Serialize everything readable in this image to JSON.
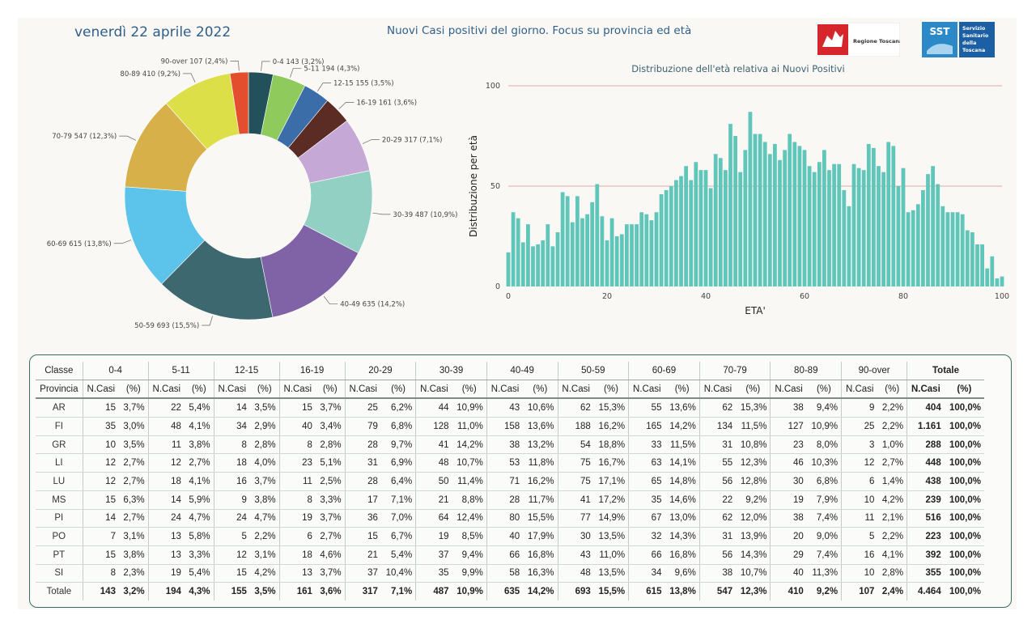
{
  "header": {
    "date": "venerdì 22 aprile 2022",
    "title": "Nuovi Casi positivi del giorno. Focus su provincia ed età"
  },
  "logos": {
    "regione": "Regione Toscana",
    "sst_mark": "SST",
    "sst_lines": [
      "Servizio",
      "Sanitario",
      "della",
      "Toscana"
    ]
  },
  "chart_data": [
    {
      "type": "pie",
      "slices": [
        {
          "label": "0-4 143 (3,2%)",
          "value": 143,
          "color": "#22515b"
        },
        {
          "label": "5-11 194 (4,3%)",
          "value": 194,
          "color": "#8fca5c"
        },
        {
          "label": "12-15 155 (3,5%)",
          "value": 155,
          "color": "#3b6ea8"
        },
        {
          "label": "16-19 161 (3,6%)",
          "value": 161,
          "color": "#5a2c24"
        },
        {
          "label": "20-29 317 (7,1%)",
          "value": 317,
          "color": "#c5a8d6"
        },
        {
          "label": "30-39 487 (10,9%)",
          "value": 487,
          "color": "#93d0c4"
        },
        {
          "label": "40-49 635 (14,2%)",
          "value": 635,
          "color": "#8063a7"
        },
        {
          "label": "50-59 693 (15,5%)",
          "value": 693,
          "color": "#3e6870"
        },
        {
          "label": "60-69 615 (13,8%)",
          "value": 615,
          "color": "#5cc3ea"
        },
        {
          "label": "70-79 547 (12,3%)",
          "value": 547,
          "color": "#d8b04a"
        },
        {
          "label": "80-89 410 (9,2%)",
          "value": 410,
          "color": "#dcdf47"
        },
        {
          "label": "90-over 107 (2,4%)",
          "value": 107,
          "color": "#e24e2e"
        }
      ]
    },
    {
      "type": "bar",
      "title": "Distribuzione dell'età relativa ai Nuovi Positivi",
      "xlabel": "ETA'",
      "ylabel": "Distribuzione per età",
      "xlim": [
        0,
        100
      ],
      "ylim": [
        0,
        100
      ],
      "xticks": [
        0,
        20,
        40,
        60,
        80,
        100
      ],
      "yticks": [
        0,
        50,
        100
      ],
      "color": "#5fc6b9",
      "x": [
        0,
        1,
        2,
        3,
        4,
        5,
        6,
        7,
        8,
        9,
        10,
        11,
        12,
        13,
        14,
        15,
        16,
        17,
        18,
        19,
        20,
        21,
        22,
        23,
        24,
        25,
        26,
        27,
        28,
        29,
        30,
        31,
        32,
        33,
        34,
        35,
        36,
        37,
        38,
        39,
        40,
        41,
        42,
        43,
        44,
        45,
        46,
        47,
        48,
        49,
        50,
        51,
        52,
        53,
        54,
        55,
        56,
        57,
        58,
        59,
        60,
        61,
        62,
        63,
        64,
        65,
        66,
        67,
        68,
        69,
        70,
        71,
        72,
        73,
        74,
        75,
        76,
        77,
        78,
        79,
        80,
        81,
        82,
        83,
        84,
        85,
        86,
        87,
        88,
        89,
        90,
        91,
        92,
        93,
        94,
        95,
        96,
        97,
        98,
        99,
        100
      ],
      "values": [
        17,
        37,
        34,
        22,
        31,
        20,
        21,
        23,
        31,
        20,
        27,
        47,
        45,
        32,
        45,
        34,
        36,
        42,
        51,
        35,
        23,
        34,
        25,
        26,
        31,
        31,
        31,
        37,
        36,
        33,
        37,
        46,
        48,
        50,
        53,
        55,
        60,
        53,
        62,
        58,
        58,
        49,
        66,
        64,
        58,
        81,
        75,
        57,
        68,
        87,
        76,
        76,
        72,
        66,
        71,
        63,
        68,
        76,
        72,
        70,
        68,
        60,
        57,
        62,
        68,
        58,
        61,
        61,
        48,
        40,
        61,
        59,
        58,
        71,
        69,
        60,
        57,
        72,
        70,
        50,
        59,
        37,
        38,
        41,
        48,
        56,
        60,
        51,
        40,
        37,
        37,
        37,
        36,
        28,
        27,
        21,
        21,
        9,
        15,
        4,
        5
      ]
    }
  ],
  "table": {
    "classe_label": "Classe",
    "provincia_label": "Provincia",
    "groups": [
      "0-4",
      "5-11",
      "12-15",
      "16-19",
      "20-29",
      "30-39",
      "40-49",
      "50-59",
      "60-69",
      "70-79",
      "80-89",
      "90-over",
      "Totale"
    ],
    "sub_ncasi": "N.Casi",
    "sub_pct": "(%)",
    "rows": [
      {
        "prov": "AR",
        "cells": [
          "15",
          "3,7%",
          "22",
          "5,4%",
          "14",
          "3,5%",
          "15",
          "3,7%",
          "25",
          "6,2%",
          "44",
          "10,9%",
          "43",
          "10,6%",
          "62",
          "15,3%",
          "55",
          "13,6%",
          "62",
          "15,3%",
          "38",
          "9,4%",
          "9",
          "2,2%",
          "404",
          "100,0%"
        ]
      },
      {
        "prov": "FI",
        "cells": [
          "35",
          "3,0%",
          "48",
          "4,1%",
          "34",
          "2,9%",
          "40",
          "3,4%",
          "79",
          "6,8%",
          "128",
          "11,0%",
          "158",
          "13,6%",
          "188",
          "16,2%",
          "165",
          "14,2%",
          "134",
          "11,5%",
          "127",
          "10,9%",
          "25",
          "2,2%",
          "1.161",
          "100,0%"
        ]
      },
      {
        "prov": "GR",
        "cells": [
          "10",
          "3,5%",
          "11",
          "3,8%",
          "8",
          "2,8%",
          "8",
          "2,8%",
          "28",
          "9,7%",
          "41",
          "14,2%",
          "38",
          "13,2%",
          "54",
          "18,8%",
          "33",
          "11,5%",
          "31",
          "10,8%",
          "23",
          "8,0%",
          "3",
          "1,0%",
          "288",
          "100,0%"
        ]
      },
      {
        "prov": "LI",
        "cells": [
          "12",
          "2,7%",
          "12",
          "2,7%",
          "18",
          "4,0%",
          "23",
          "5,1%",
          "31",
          "6,9%",
          "48",
          "10,7%",
          "53",
          "11,8%",
          "75",
          "16,7%",
          "63",
          "14,1%",
          "55",
          "12,3%",
          "46",
          "10,3%",
          "12",
          "2,7%",
          "448",
          "100,0%"
        ]
      },
      {
        "prov": "LU",
        "cells": [
          "12",
          "2,7%",
          "18",
          "4,1%",
          "16",
          "3,7%",
          "11",
          "2,5%",
          "28",
          "6,4%",
          "50",
          "11,4%",
          "71",
          "16,2%",
          "75",
          "17,1%",
          "65",
          "14,8%",
          "56",
          "12,8%",
          "30",
          "6,8%",
          "6",
          "1,4%",
          "438",
          "100,0%"
        ]
      },
      {
        "prov": "MS",
        "cells": [
          "15",
          "6,3%",
          "14",
          "5,9%",
          "9",
          "3,8%",
          "8",
          "3,3%",
          "17",
          "7,1%",
          "21",
          "8,8%",
          "28",
          "11,7%",
          "41",
          "17,2%",
          "35",
          "14,6%",
          "22",
          "9,2%",
          "19",
          "7,9%",
          "10",
          "4,2%",
          "239",
          "100,0%"
        ]
      },
      {
        "prov": "PI",
        "cells": [
          "14",
          "2,7%",
          "24",
          "4,7%",
          "24",
          "4,7%",
          "19",
          "3,7%",
          "36",
          "7,0%",
          "64",
          "12,4%",
          "80",
          "15,5%",
          "77",
          "14,9%",
          "67",
          "13,0%",
          "62",
          "12,0%",
          "38",
          "7,4%",
          "11",
          "2,1%",
          "516",
          "100,0%"
        ]
      },
      {
        "prov": "PO",
        "cells": [
          "7",
          "3,1%",
          "13",
          "5,8%",
          "5",
          "2,2%",
          "6",
          "2,7%",
          "15",
          "6,7%",
          "19",
          "8,5%",
          "40",
          "17,9%",
          "30",
          "13,5%",
          "32",
          "14,3%",
          "31",
          "13,9%",
          "20",
          "9,0%",
          "5",
          "2,2%",
          "223",
          "100,0%"
        ]
      },
      {
        "prov": "PT",
        "cells": [
          "15",
          "3,8%",
          "13",
          "3,3%",
          "12",
          "3,1%",
          "18",
          "4,6%",
          "21",
          "5,4%",
          "37",
          "9,4%",
          "66",
          "16,8%",
          "43",
          "11,0%",
          "66",
          "16,8%",
          "56",
          "14,3%",
          "29",
          "7,4%",
          "16",
          "4,1%",
          "392",
          "100,0%"
        ]
      },
      {
        "prov": "SI",
        "cells": [
          "8",
          "2,3%",
          "19",
          "5,4%",
          "15",
          "4,2%",
          "13",
          "3,7%",
          "37",
          "10,4%",
          "35",
          "9,9%",
          "58",
          "16,3%",
          "48",
          "13,5%",
          "34",
          "9,6%",
          "38",
          "10,7%",
          "40",
          "11,3%",
          "10",
          "2,8%",
          "355",
          "100,0%"
        ]
      }
    ],
    "total": {
      "prov": "Totale",
      "cells": [
        "143",
        "3,2%",
        "194",
        "4,3%",
        "155",
        "3,5%",
        "161",
        "3,6%",
        "317",
        "7,1%",
        "487",
        "10,9%",
        "635",
        "14,2%",
        "693",
        "15,5%",
        "615",
        "13,8%",
        "547",
        "12,3%",
        "410",
        "9,2%",
        "107",
        "2,4%",
        "4.464",
        "100,0%"
      ]
    }
  }
}
